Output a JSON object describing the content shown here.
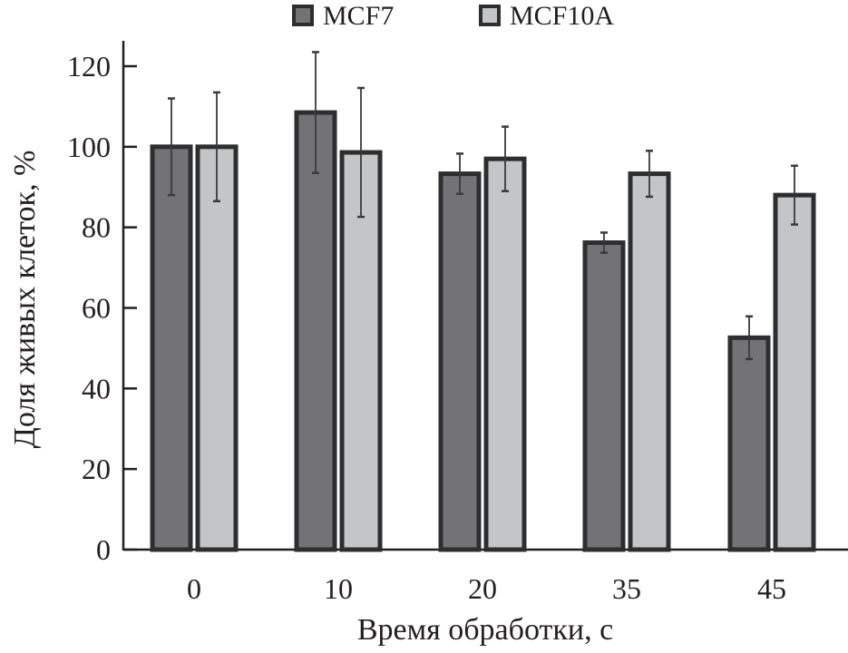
{
  "chart_data": {
    "type": "bar",
    "title": "",
    "xlabel": "Время обработки, с",
    "ylabel": "Доля живых клеток, %",
    "categories": [
      "0",
      "10",
      "20",
      "35",
      "45"
    ],
    "ylim": [
      0,
      120
    ],
    "yticks": [
      "0",
      "20",
      "40",
      "60",
      "80",
      "100",
      "120"
    ],
    "grid": false,
    "legend_position": "top-center",
    "series": [
      {
        "name": "MCF7",
        "color": "#737375",
        "values": [
          100,
          108.5,
          93.3,
          76.2,
          52.6
        ],
        "errors": [
          12,
          15,
          5,
          2.5,
          5.3
        ]
      },
      {
        "name": "MCF10A",
        "color": "#c4c5c7",
        "values": [
          100,
          98.6,
          97,
          93.3,
          88
        ],
        "errors": [
          13.5,
          16,
          8,
          5.7,
          7.3
        ]
      }
    ],
    "bar_edge_color": "#2e2e2e"
  }
}
